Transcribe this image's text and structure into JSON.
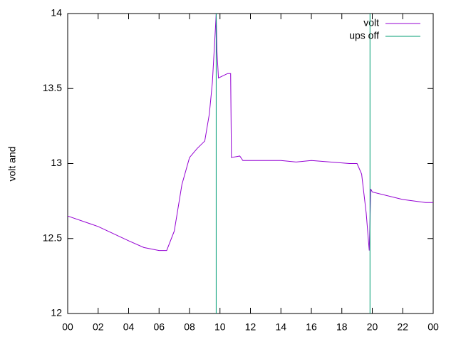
{
  "chart_data": {
    "type": "line",
    "ylabel": "volt and",
    "xlim": [
      0,
      24
    ],
    "ylim": [
      12,
      14
    ],
    "xticks": [
      {
        "value": 0,
        "label": "00"
      },
      {
        "value": 2,
        "label": "02"
      },
      {
        "value": 4,
        "label": "04"
      },
      {
        "value": 6,
        "label": "06"
      },
      {
        "value": 8,
        "label": "08"
      },
      {
        "value": 10,
        "label": "10"
      },
      12,
      14,
      16,
      18,
      20,
      22,
      {
        "value": 24,
        "label": "00"
      }
    ],
    "yticks": [
      12,
      12.5,
      13,
      13.5,
      14
    ],
    "legend": "top-right",
    "series": [
      {
        "name": "volt",
        "color": "#9400d3",
        "x": [
          0,
          2,
          4,
          5,
          6,
          6.5,
          7,
          7.5,
          8,
          8.5,
          9,
          9.3,
          9.5,
          9.7,
          9.75,
          9.8,
          9.9,
          10.5,
          10.7,
          10.75,
          11.3,
          11.5,
          14,
          15,
          16,
          18.5,
          19,
          19.3,
          19.6,
          19.8,
          19.85,
          19.9,
          20,
          22,
          23.5,
          24
        ],
        "values": [
          12.65,
          12.58,
          12.485,
          12.44,
          12.42,
          12.42,
          12.55,
          12.86,
          13.04,
          13.1,
          13.15,
          13.33,
          13.54,
          13.9,
          14,
          13.75,
          13.57,
          13.6,
          13.6,
          13.04,
          13.05,
          13.02,
          13.02,
          13.01,
          13.02,
          13.0,
          13.0,
          12.93,
          12.67,
          12.42,
          12.62,
          12.83,
          12.81,
          12.76,
          12.74,
          12.74
        ]
      },
      {
        "name": "ups off",
        "color": "#009e73",
        "x": [
          9.75,
          9.75,
          null,
          19.85,
          19.85
        ],
        "values": [
          12,
          14,
          null,
          12,
          14
        ]
      }
    ]
  }
}
